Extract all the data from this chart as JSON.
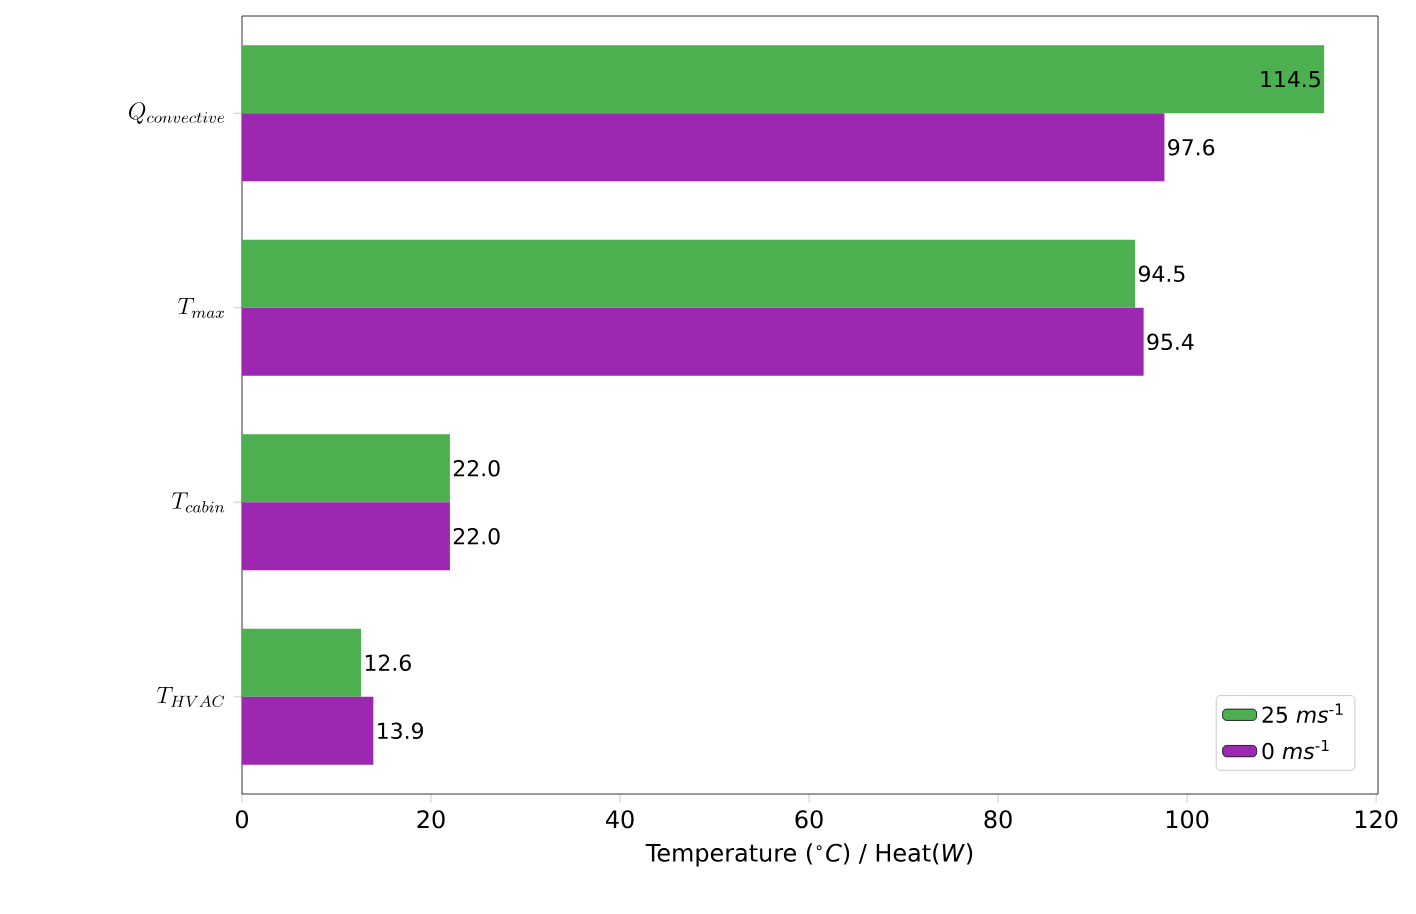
{
  "chart_data": {
    "type": "bar",
    "orientation": "horizontal",
    "categories": [
      "Q_{convective}",
      "T_{max}",
      "T_{cabin}",
      "T_{HVAC}"
    ],
    "series": [
      {
        "name": "25 *ms*$^{-1}$",
        "color": "#4caf50",
        "values": [
          114.5,
          94.5,
          22.0,
          12.6
        ],
        "value_labels": [
          "114.5",
          "94.5",
          "22.0",
          "12.6"
        ]
      },
      {
        "name": "0 *ms*$^{-1}$",
        "color": "#9c27b0",
        "values": [
          97.6,
          95.4,
          22.0,
          13.9
        ],
        "value_labels": [
          "97.6",
          "95.4",
          "22.0",
          "13.9"
        ]
      }
    ],
    "xlabel": "Temperature ($^{∘}$*C*) / Heat(*W*)",
    "xlim": [
      0,
      120.2
    ],
    "xticks": [
      0,
      20,
      40,
      60,
      80,
      100,
      120
    ],
    "legend": "bottom right",
    "grid": false
  }
}
